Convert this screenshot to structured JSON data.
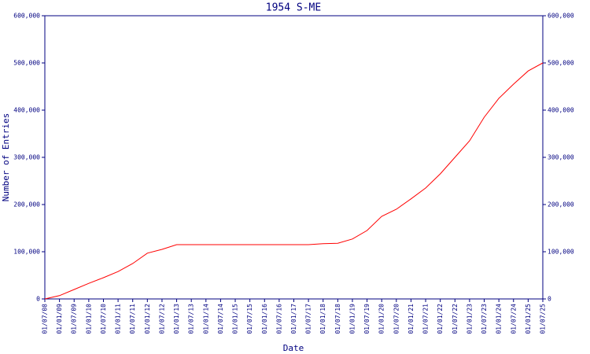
{
  "chart_data": {
    "type": "line",
    "title": "1954 S-ME",
    "x_label": "Date",
    "y_label": "Number of Entries",
    "categories": [
      "01/07/08",
      "01/01/09",
      "01/07/09",
      "01/01/10",
      "01/07/10",
      "01/01/11",
      "01/07/11",
      "01/01/12",
      "01/07/12",
      "01/01/13",
      "01/07/13",
      "01/01/14",
      "01/07/14",
      "01/01/15",
      "01/07/15",
      "01/01/16",
      "01/07/16",
      "01/01/17",
      "01/07/17",
      "01/01/18",
      "01/07/18",
      "01/01/19",
      "01/07/19",
      "01/01/20",
      "01/07/20",
      "01/01/21",
      "01/07/21",
      "01/01/22",
      "01/07/22",
      "01/01/23",
      "01/07/23",
      "01/01/24",
      "01/07/24",
      "01/01/25",
      "01/07/25"
    ],
    "series": [
      {
        "name": "Entries",
        "color": "#ff0000",
        "values": [
          0,
          7000,
          20000,
          33000,
          45000,
          58000,
          75000,
          97000,
          105000,
          115000,
          115000,
          115000,
          115000,
          115000,
          115000,
          115000,
          115000,
          115000,
          115000,
          117000,
          118000,
          127000,
          145000,
          175000,
          190000,
          212000,
          235000,
          265000,
          300000,
          335000,
          385000,
          425000,
          455000,
          483000,
          500000
        ]
      }
    ],
    "ylim": [
      0,
      600000
    ],
    "yticks": [
      0,
      {
        "value": 100000,
        "label": "100,000"
      },
      {
        "value": 200000,
        "label": "200,000"
      },
      {
        "value": 300000,
        "label": "300,000"
      },
      {
        "value": 400000,
        "label": "400,000"
      },
      {
        "value": 500000,
        "label": "500,000"
      },
      {
        "value": 600000,
        "label": "600,000"
      }
    ],
    "y2lim": [
      0,
      600000
    ],
    "y2ticks": [
      0,
      {
        "value": 100000,
        "label": "100,000"
      },
      {
        "value": 200000,
        "label": "200,000"
      },
      {
        "value": 300000,
        "label": "300,000"
      },
      {
        "value": 400000,
        "label": "400,000"
      },
      {
        "value": 500000,
        "label": "500,000"
      },
      {
        "value": 600000,
        "label": "600,000"
      }
    ],
    "axis_color": "#000080"
  }
}
